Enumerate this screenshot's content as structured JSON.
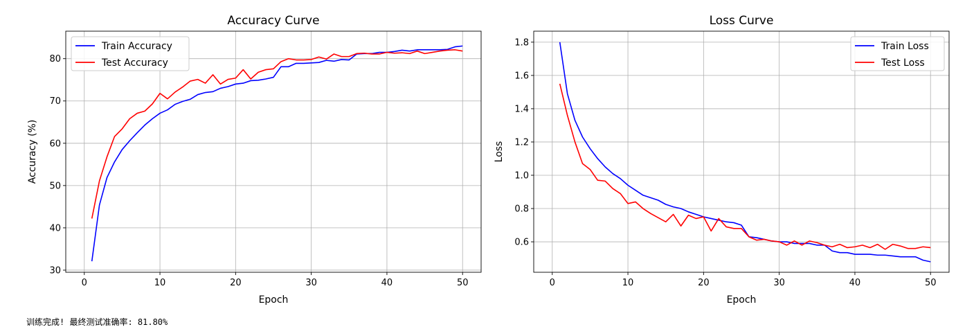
{
  "footer": {
    "status_text": "训练完成! 最终测试准确率: 81.80%"
  },
  "chart_data": [
    {
      "type": "line",
      "title": "Accuracy Curve",
      "xlabel": "Epoch",
      "ylabel": "Accuracy (%)",
      "xlim": [
        -2.45,
        52.45
      ],
      "ylim": [
        29.5,
        86.5
      ],
      "xticks": [
        0,
        10,
        20,
        30,
        40,
        50
      ],
      "yticks": [
        30,
        40,
        50,
        60,
        70,
        80
      ],
      "grid": true,
      "legend": "top-left",
      "x": [
        1,
        2,
        3,
        4,
        5,
        6,
        7,
        8,
        9,
        10,
        11,
        12,
        13,
        14,
        15,
        16,
        17,
        18,
        19,
        20,
        21,
        22,
        23,
        24,
        25,
        26,
        27,
        28,
        29,
        30,
        31,
        32,
        33,
        34,
        35,
        36,
        37,
        38,
        39,
        40,
        41,
        42,
        43,
        44,
        45,
        46,
        47,
        48,
        49,
        50
      ],
      "series": [
        {
          "name": "Train Accuracy",
          "color": "#0000ff",
          "values": [
            32.1,
            45.4,
            51.9,
            55.6,
            58.5,
            60.6,
            62.5,
            64.3,
            65.8,
            67.1,
            67.9,
            69.2,
            69.9,
            70.4,
            71.5,
            72.0,
            72.2,
            73.0,
            73.4,
            74.0,
            74.2,
            74.8,
            74.9,
            75.2,
            75.6,
            78.1,
            78.1,
            78.9,
            78.9,
            79.0,
            79.1,
            79.6,
            79.4,
            79.8,
            79.7,
            81.1,
            81.2,
            81.2,
            81.5,
            81.5,
            81.7,
            82.0,
            81.8,
            82.1,
            82.1,
            82.1,
            82.1,
            82.2,
            82.8,
            83.0
          ]
        },
        {
          "name": "Test Accuracy",
          "color": "#ff0000",
          "values": [
            42.2,
            51.1,
            56.8,
            61.6,
            63.4,
            65.8,
            67.1,
            67.6,
            69.3,
            71.8,
            70.5,
            72.1,
            73.3,
            74.7,
            75.1,
            74.2,
            76.2,
            74.0,
            75.1,
            75.4,
            77.4,
            75.2,
            76.8,
            77.4,
            77.6,
            79.3,
            80.0,
            79.7,
            79.7,
            79.8,
            80.4,
            79.9,
            81.1,
            80.5,
            80.5,
            81.2,
            81.3,
            81.1,
            81.1,
            81.5,
            81.3,
            81.4,
            81.2,
            81.8,
            81.2,
            81.5,
            81.8,
            82.0,
            82.1,
            81.8
          ]
        }
      ]
    },
    {
      "type": "line",
      "title": "Loss Curve",
      "xlabel": "Epoch",
      "ylabel": "Loss",
      "xlim": [
        -2.45,
        52.45
      ],
      "ylim": [
        0.417,
        1.866
      ],
      "xticks": [
        0,
        10,
        20,
        30,
        40,
        50
      ],
      "yticks": [
        0.6,
        0.8,
        1.0,
        1.2,
        1.4,
        1.6,
        1.8
      ],
      "grid": true,
      "legend": "top-right",
      "x": [
        1,
        2,
        3,
        4,
        5,
        6,
        7,
        8,
        9,
        10,
        11,
        12,
        13,
        14,
        15,
        16,
        17,
        18,
        19,
        20,
        21,
        22,
        23,
        24,
        25,
        26,
        27,
        28,
        29,
        30,
        31,
        32,
        33,
        34,
        35,
        36,
        37,
        38,
        39,
        40,
        41,
        42,
        43,
        44,
        45,
        46,
        47,
        48,
        49,
        50
      ],
      "series": [
        {
          "name": "Train Loss",
          "color": "#0000ff",
          "values": [
            1.8,
            1.49,
            1.33,
            1.23,
            1.16,
            1.1,
            1.05,
            1.01,
            0.98,
            0.94,
            0.91,
            0.88,
            0.865,
            0.85,
            0.825,
            0.81,
            0.8,
            0.78,
            0.765,
            0.75,
            0.74,
            0.73,
            0.72,
            0.715,
            0.7,
            0.63,
            0.625,
            0.615,
            0.605,
            0.6,
            0.6,
            0.59,
            0.59,
            0.59,
            0.58,
            0.58,
            0.545,
            0.535,
            0.535,
            0.525,
            0.525,
            0.525,
            0.52,
            0.52,
            0.515,
            0.51,
            0.51,
            0.51,
            0.49,
            0.48
          ]
        },
        {
          "name": "Test Loss",
          "color": "#ff0000",
          "values": [
            1.55,
            1.36,
            1.2,
            1.07,
            1.035,
            0.97,
            0.965,
            0.92,
            0.89,
            0.83,
            0.84,
            0.8,
            0.77,
            0.745,
            0.72,
            0.765,
            0.695,
            0.76,
            0.74,
            0.75,
            0.665,
            0.74,
            0.69,
            0.68,
            0.68,
            0.63,
            0.61,
            0.615,
            0.605,
            0.6,
            0.58,
            0.605,
            0.58,
            0.605,
            0.595,
            0.58,
            0.57,
            0.585,
            0.565,
            0.57,
            0.58,
            0.565,
            0.585,
            0.555,
            0.585,
            0.575,
            0.56,
            0.56,
            0.57,
            0.565
          ]
        }
      ]
    }
  ]
}
